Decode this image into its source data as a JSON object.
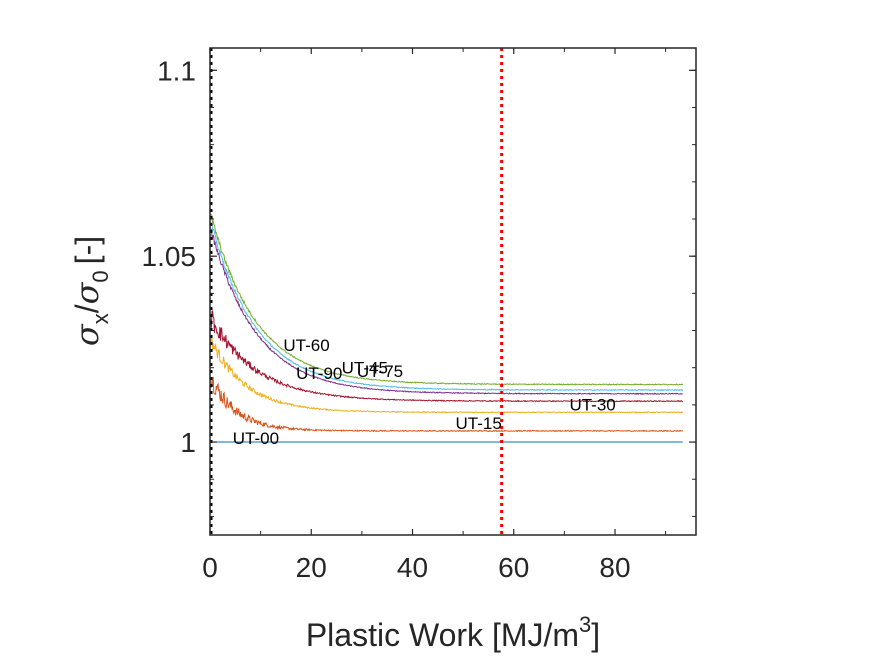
{
  "chart_data": {
    "type": "line",
    "xlabel_prefix": "Plastic Work [MJ/m",
    "xlabel_sup": "3",
    "xlabel_suffix": "]",
    "ylabel_sigma_x_sub": "x",
    "ylabel_sigma_0_sub": "0",
    "ylabel_unit": "[-]",
    "xlim": [
      0,
      96
    ],
    "ylim": [
      0.975,
      1.106
    ],
    "x_ticks": [
      0,
      20,
      40,
      60,
      80
    ],
    "x_tick_labels": [
      "0",
      "20",
      "40",
      "60",
      "80"
    ],
    "y_ticks": [
      1.0,
      1.05,
      1.1
    ],
    "y_tick_labels": [
      "1",
      "1.05",
      "1.1"
    ],
    "vline": {
      "x": 57.6,
      "color": "#ff0000",
      "style": "dotted"
    },
    "grid": false,
    "series": [
      {
        "name": "UT-00",
        "color": "#0072bd",
        "final": 1.0,
        "start": 1.0,
        "tau": 1,
        "noise": 0.0,
        "label_x": 4.5,
        "label_y": 0.9995
      },
      {
        "name": "UT-15",
        "color": "#d95319",
        "final": 1.003,
        "start": 1.018,
        "tau": 5,
        "noise": 0.003,
        "label_x": 48.5,
        "label_y": 1.0035
      },
      {
        "name": "UT-30",
        "color": "#edb120",
        "final": 1.008,
        "start": 1.028,
        "tau": 7,
        "noise": 0.002,
        "label_x": 71,
        "label_y": 1.0085
      },
      {
        "name": "UT-45",
        "color": "#7e2f8e",
        "final": 1.013,
        "start": 1.058,
        "tau": 9,
        "noise": 0.0008,
        "label_x": 26,
        "label_y": 1.0185
      },
      {
        "name": "UT-60",
        "color": "#77ac30",
        "final": 1.0155,
        "start": 1.062,
        "tau": 9,
        "noise": 0.0008,
        "label_x": 14.5,
        "label_y": 1.0245
      },
      {
        "name": "UT-75",
        "color": "#4dbeee",
        "final": 1.014,
        "start": 1.06,
        "tau": 9,
        "noise": 0.0008,
        "label_x": 29,
        "label_y": 1.0175
      },
      {
        "name": "UT-90",
        "color": "#a2142f",
        "final": 1.011,
        "start": 1.034,
        "tau": 9,
        "noise": 0.003,
        "label_x": 17,
        "label_y": 1.017
      }
    ]
  }
}
